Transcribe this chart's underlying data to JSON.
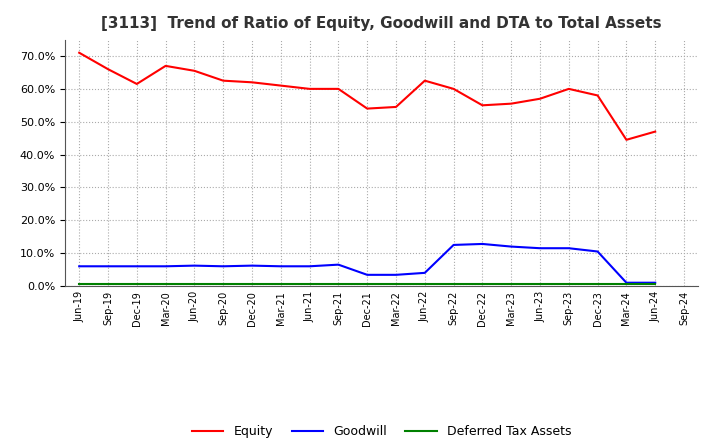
{
  "title": "[3113]  Trend of Ratio of Equity, Goodwill and DTA to Total Assets",
  "x_labels": [
    "Jun-19",
    "Sep-19",
    "Dec-19",
    "Mar-20",
    "Jun-20",
    "Sep-20",
    "Dec-20",
    "Mar-21",
    "Jun-21",
    "Sep-21",
    "Dec-21",
    "Mar-22",
    "Jun-22",
    "Sep-22",
    "Dec-22",
    "Mar-23",
    "Jun-23",
    "Sep-23",
    "Dec-23",
    "Mar-24",
    "Jun-24",
    "Sep-24"
  ],
  "equity": [
    0.71,
    0.66,
    0.615,
    0.67,
    0.655,
    0.625,
    0.62,
    0.61,
    0.6,
    0.6,
    0.54,
    0.545,
    0.625,
    0.6,
    0.55,
    0.555,
    0.57,
    0.6,
    0.58,
    0.445,
    0.47,
    null
  ],
  "goodwill": [
    0.06,
    0.06,
    0.06,
    0.06,
    0.062,
    0.06,
    0.062,
    0.06,
    0.06,
    0.065,
    0.034,
    0.034,
    0.04,
    0.125,
    0.128,
    0.12,
    0.115,
    0.115,
    0.105,
    0.01,
    0.01,
    null
  ],
  "dta": [
    0.005,
    0.005,
    0.005,
    0.005,
    0.005,
    0.005,
    0.005,
    0.005,
    0.005,
    0.005,
    0.005,
    0.005,
    0.005,
    0.005,
    0.005,
    0.005,
    0.005,
    0.005,
    0.005,
    0.005,
    0.005,
    null
  ],
  "equity_color": "#FF0000",
  "goodwill_color": "#0000FF",
  "dta_color": "#008000",
  "ylim": [
    0.0,
    0.75
  ],
  "yticks": [
    0.0,
    0.1,
    0.2,
    0.3,
    0.4,
    0.5,
    0.6,
    0.7
  ],
  "background_color": "#FFFFFF",
  "grid_color": "#AAAAAA",
  "title_fontsize": 11,
  "legend_fontsize": 9
}
